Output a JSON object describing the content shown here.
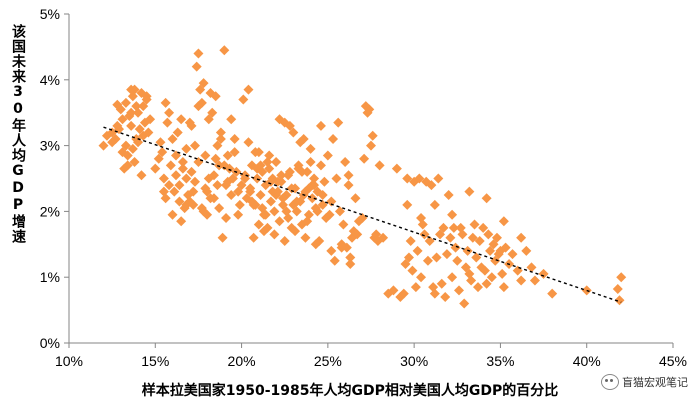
{
  "chart_data": {
    "type": "scatter",
    "title": "",
    "xlabel": "样本拉美国家1950-1985年人均GDP相对美国人均GDP的百分比",
    "ylabel": "该国未来30年人均GDP增速",
    "xlim": [
      0.1,
      0.45
    ],
    "ylim": [
      0.0,
      0.05
    ],
    "x_ticks": [
      "10%",
      "15%",
      "20%",
      "25%",
      "30%",
      "35%",
      "40%",
      "45%"
    ],
    "y_ticks": [
      "0%",
      "1%",
      "2%",
      "3%",
      "4%",
      "5%"
    ],
    "marker_color": "#F79646",
    "trendline": {
      "style": "dashed",
      "x": [
        0.12,
        0.42
      ],
      "y": [
        0.0328,
        0.0062
      ]
    },
    "series": [
      {
        "x": [
          0.12,
          0.122,
          0.125,
          0.127,
          0.128,
          0.13,
          0.131,
          0.133,
          0.134,
          0.135,
          0.136,
          0.137,
          0.138,
          0.139,
          0.14,
          0.141,
          0.142,
          0.143,
          0.144,
          0.145,
          0.146,
          0.134,
          0.138,
          0.142,
          0.128,
          0.133,
          0.137,
          0.14,
          0.136,
          0.131,
          0.143,
          0.139,
          0.145,
          0.147,
          0.132,
          0.136,
          0.125,
          0.129
        ],
        "y": [
          0.03,
          0.0315,
          0.032,
          0.031,
          0.0362,
          0.0355,
          0.034,
          0.03,
          0.027,
          0.0345,
          0.033,
          0.0375,
          0.0385,
          0.036,
          0.035,
          0.0325,
          0.038,
          0.0315,
          0.0335,
          0.037,
          0.032,
          0.0285,
          0.0275,
          0.0255,
          0.033,
          0.0365,
          0.0295,
          0.0305,
          0.035,
          0.029,
          0.036,
          0.031,
          0.0375,
          0.034,
          0.0265,
          0.0385,
          0.0305,
          0.0325
        ]
      },
      {
        "x": [
          0.15,
          0.152,
          0.154,
          0.155,
          0.156,
          0.157,
          0.158,
          0.159,
          0.16,
          0.161,
          0.162,
          0.163,
          0.164,
          0.165,
          0.166,
          0.167,
          0.168,
          0.169,
          0.17,
          0.171,
          0.172,
          0.173,
          0.174,
          0.175,
          0.176,
          0.177,
          0.178,
          0.179,
          0.18,
          0.181,
          0.182,
          0.183,
          0.184,
          0.185,
          0.186,
          0.187,
          0.188,
          0.189,
          0.19,
          0.191,
          0.192,
          0.193,
          0.194,
          0.195,
          0.196,
          0.197,
          0.198,
          0.199,
          0.153,
          0.158,
          0.162,
          0.166,
          0.171,
          0.175,
          0.179,
          0.184,
          0.188,
          0.192,
          0.196,
          0.156,
          0.16,
          0.164,
          0.168,
          0.173,
          0.177,
          0.181,
          0.186,
          0.19,
          0.194,
          0.198,
          0.155,
          0.165,
          0.17,
          0.18,
          0.185,
          0.175,
          0.178,
          0.182,
          0.187,
          0.191,
          0.168,
          0.172
        ],
        "y": [
          0.0265,
          0.028,
          0.029,
          0.025,
          0.0365,
          0.0335,
          0.024,
          0.027,
          0.031,
          0.023,
          0.0255,
          0.032,
          0.0215,
          0.034,
          0.0275,
          0.0205,
          0.0295,
          0.0225,
          0.0335,
          0.026,
          0.021,
          0.0245,
          0.042,
          0.044,
          0.0385,
          0.0365,
          0.0395,
          0.0285,
          0.023,
          0.025,
          0.038,
          0.035,
          0.0255,
          0.0375,
          0.03,
          0.027,
          0.031,
          0.016,
          0.0445,
          0.024,
          0.0285,
          0.0265,
          0.0225,
          0.025,
          0.031,
          0.026,
          0.023,
          0.021,
          0.0305,
          0.035,
          0.0285,
          0.0265,
          0.033,
          0.0275,
          0.0235,
          0.022,
          0.032,
          0.0245,
          0.029,
          0.022,
          0.0195,
          0.024,
          0.021,
          0.03,
          0.0205,
          0.034,
          0.024,
          0.027,
          0.034,
          0.0195,
          0.023,
          0.0185,
          0.0215,
          0.0195,
          0.028,
          0.036,
          0.02,
          0.022,
          0.0205,
          0.019,
          0.025,
          0.023
        ]
      },
      {
        "x": [
          0.2,
          0.201,
          0.202,
          0.203,
          0.204,
          0.205,
          0.206,
          0.207,
          0.208,
          0.209,
          0.21,
          0.211,
          0.212,
          0.213,
          0.214,
          0.215,
          0.216,
          0.217,
          0.218,
          0.219,
          0.22,
          0.221,
          0.222,
          0.223,
          0.224,
          0.225,
          0.226,
          0.227,
          0.228,
          0.229,
          0.23,
          0.231,
          0.232,
          0.233,
          0.234,
          0.235,
          0.236,
          0.237,
          0.238,
          0.239,
          0.24,
          0.241,
          0.242,
          0.243,
          0.244,
          0.245,
          0.246,
          0.247,
          0.248,
          0.249,
          0.202,
          0.205,
          0.208,
          0.211,
          0.214,
          0.217,
          0.22,
          0.223,
          0.226,
          0.229,
          0.232,
          0.235,
          0.238,
          0.241,
          0.244,
          0.247,
          0.204,
          0.21,
          0.216,
          0.222,
          0.228,
          0.234,
          0.24,
          0.246,
          0.207,
          0.213,
          0.219,
          0.225,
          0.231,
          0.237,
          0.243,
          0.206,
          0.212,
          0.218,
          0.224,
          0.23,
          0.236,
          0.242,
          0.209,
          0.215,
          0.221,
          0.227,
          0.233,
          0.239
        ],
        "y": [
          0.024,
          0.037,
          0.0255,
          0.022,
          0.0385,
          0.0235,
          0.027,
          0.021,
          0.029,
          0.025,
          0.018,
          0.0225,
          0.026,
          0.0195,
          0.024,
          0.0175,
          0.0265,
          0.0215,
          0.025,
          0.02,
          0.0275,
          0.023,
          0.0185,
          0.0245,
          0.021,
          0.0335,
          0.0225,
          0.019,
          0.026,
          0.0175,
          0.032,
          0.0235,
          0.02,
          0.027,
          0.0215,
          0.018,
          0.031,
          0.023,
          0.026,
          0.0195,
          0.0275,
          0.022,
          0.025,
          0.0205,
          0.023,
          0.0155,
          0.027,
          0.021,
          0.0245,
          0.019,
          0.025,
          0.023,
          0.021,
          0.027,
          0.0195,
          0.0245,
          0.0225,
          0.0255,
          0.02,
          0.0235,
          0.0215,
          0.026,
          0.0185,
          0.024,
          0.02,
          0.0225,
          0.0305,
          0.029,
          0.0285,
          0.034,
          0.033,
          0.0305,
          0.0295,
          0.033,
          0.016,
          0.017,
          0.0165,
          0.0155,
          0.017,
          0.016,
          0.015,
          0.0215,
          0.0205,
          0.023,
          0.022,
          0.021,
          0.0225,
          0.024,
          0.0265,
          0.0275,
          0.0245,
          0.0255,
          0.0265,
          0.0235
        ]
      },
      {
        "x": [
          0.25,
          0.252,
          0.254,
          0.255,
          0.256,
          0.258,
          0.259,
          0.26,
          0.261,
          0.262,
          0.263,
          0.264,
          0.265,
          0.266,
          0.268,
          0.27,
          0.271,
          0.272,
          0.273,
          0.274,
          0.275,
          0.276,
          0.277,
          0.278,
          0.279,
          0.28,
          0.282,
          0.285,
          0.288,
          0.252,
          0.257,
          0.262,
          0.267,
          0.253,
          0.258,
          0.263,
          0.251
        ],
        "y": [
          0.0285,
          0.014,
          0.0125,
          0.025,
          0.0335,
          0.015,
          0.018,
          0.0275,
          0.0145,
          0.0255,
          0.013,
          0.016,
          0.017,
          0.022,
          0.0185,
          0.019,
          0.028,
          0.036,
          0.035,
          0.0355,
          0.03,
          0.0315,
          0.016,
          0.0165,
          0.0155,
          0.027,
          0.016,
          0.0075,
          0.008,
          0.0215,
          0.02,
          0.024,
          0.0165,
          0.031,
          0.0145,
          0.012,
          0.0195
        ]
      },
      {
        "x": [
          0.29,
          0.292,
          0.294,
          0.295,
          0.296,
          0.297,
          0.298,
          0.299,
          0.3,
          0.301,
          0.302,
          0.303,
          0.304,
          0.305,
          0.306,
          0.307,
          0.308,
          0.309,
          0.31,
          0.311,
          0.312,
          0.313,
          0.314,
          0.315,
          0.316,
          0.317,
          0.318,
          0.319,
          0.32,
          0.321,
          0.322,
          0.323,
          0.324,
          0.325,
          0.326,
          0.327,
          0.328,
          0.329,
          0.33,
          0.331,
          0.332,
          0.333,
          0.334,
          0.335,
          0.336,
          0.337,
          0.338,
          0.339,
          0.34,
          0.341,
          0.342,
          0.343,
          0.344,
          0.345,
          0.346,
          0.347,
          0.348,
          0.349,
          0.35,
          0.351,
          0.352,
          0.353,
          0.355,
          0.357,
          0.36,
          0.362,
          0.365,
          0.368,
          0.37,
          0.375,
          0.38,
          0.4,
          0.418,
          0.419,
          0.42,
          0.296,
          0.304,
          0.312,
          0.322,
          0.332,
          0.342,
          0.352,
          0.362
        ],
        "y": [
          0.0265,
          0.007,
          0.0075,
          0.012,
          0.025,
          0.013,
          0.0155,
          0.011,
          0.0245,
          0.0085,
          0.014,
          0.025,
          0.01,
          0.018,
          0.0165,
          0.0245,
          0.0125,
          0.0155,
          0.024,
          0.0085,
          0.021,
          0.013,
          0.025,
          0.0165,
          0.009,
          0.0175,
          0.007,
          0.0135,
          0.0225,
          0.016,
          0.01,
          0.0175,
          0.0145,
          0.0125,
          0.008,
          0.0175,
          0.0165,
          0.006,
          0.0115,
          0.014,
          0.0105,
          0.0095,
          0.016,
          0.018,
          0.013,
          0.0085,
          0.0155,
          0.0115,
          0.0175,
          0.011,
          0.009,
          0.0165,
          0.014,
          0.01,
          0.015,
          0.0125,
          0.016,
          0.0135,
          0.014,
          0.0105,
          0.0085,
          0.0145,
          0.012,
          0.0135,
          0.011,
          0.0095,
          0.014,
          0.0115,
          0.0095,
          0.0105,
          0.0075,
          0.008,
          0.0082,
          0.0065,
          0.01,
          0.021,
          0.019,
          0.0075,
          0.0195,
          0.023,
          0.022,
          0.0185,
          0.016
        ]
      }
    ]
  },
  "watermark": {
    "text": "盲猫宏观笔记"
  }
}
